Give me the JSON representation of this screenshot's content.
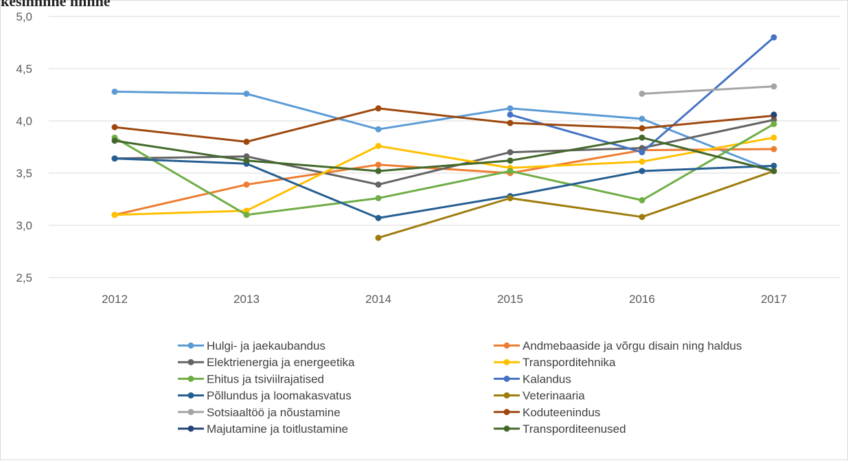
{
  "partial_top_text": "kesihnnne hnhne",
  "chart_data": {
    "type": "line",
    "x": [
      "2012",
      "2013",
      "2014",
      "2015",
      "2016",
      "2017"
    ],
    "ylim": [
      2.5,
      5.0
    ],
    "yticks": [
      "2,5",
      "3,0",
      "3,5",
      "4,0",
      "4,5",
      "5,0"
    ],
    "grid": true,
    "legend_position": "bottom",
    "series": [
      {
        "name": "Hulgi- ja jaekaubandus",
        "color": "#5b9bd5",
        "values": [
          4.28,
          4.26,
          3.92,
          4.12,
          4.02,
          3.52
        ]
      },
      {
        "name": "Andmebaaside ja võrgu disain ning haldus",
        "color": "#ed7d31",
        "values": [
          3.1,
          3.39,
          3.58,
          3.5,
          3.72,
          3.73
        ]
      },
      {
        "name": "Elektrienergia ja energeetika",
        "color": "#636363",
        "values": [
          3.64,
          3.66,
          3.39,
          3.7,
          3.74,
          4.01
        ]
      },
      {
        "name": "Transporditehnika",
        "color": "#ffc000",
        "values": [
          3.1,
          3.14,
          3.76,
          3.55,
          3.61,
          3.84
        ]
      },
      {
        "name": "Ehitus ja tsiviilrajatised",
        "color": "#70ad47",
        "values": [
          3.84,
          3.1,
          3.26,
          3.52,
          3.24,
          3.97
        ]
      },
      {
        "name": "Kalandus",
        "color": "#4472c4",
        "values": [
          null,
          null,
          null,
          4.06,
          3.7,
          4.8
        ]
      },
      {
        "name": "Põllundus ja loomakasvatus",
        "color": "#255e91",
        "values": [
          3.64,
          3.59,
          3.07,
          3.28,
          3.52,
          3.57
        ]
      },
      {
        "name": "Veterinaaria",
        "color": "#9e7c0c",
        "values": [
          null,
          null,
          2.88,
          3.26,
          3.08,
          3.52
        ]
      },
      {
        "name": "Sotsiaaltöö ja nõustamine",
        "color": "#a5a5a5",
        "values": [
          null,
          null,
          null,
          null,
          4.26,
          4.33
        ]
      },
      {
        "name": "Koduteenindus",
        "color": "#9e480e",
        "values": [
          3.94,
          3.8,
          4.12,
          3.98,
          3.93,
          4.05
        ]
      },
      {
        "name": "Majutamine ja toitlustamine",
        "color": "#264478",
        "values": [
          null,
          null,
          null,
          null,
          null,
          4.06
        ]
      },
      {
        "name": "Transporditeenused",
        "color": "#43682b",
        "values": [
          3.81,
          3.62,
          3.52,
          3.62,
          3.84,
          3.52
        ]
      }
    ]
  }
}
